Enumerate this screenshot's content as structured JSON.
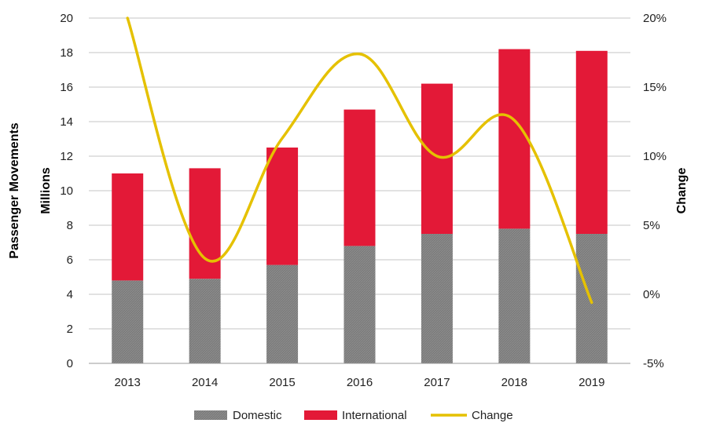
{
  "chart_data": {
    "type": "bar",
    "stacked": true,
    "categories": [
      "2013",
      "2014",
      "2015",
      "2016",
      "2017",
      "2018",
      "2019"
    ],
    "series": [
      {
        "name": "Domestic",
        "axis": "left",
        "values": [
          4.8,
          4.9,
          5.7,
          6.8,
          7.5,
          7.8,
          7.5
        ],
        "color": "#808080",
        "pattern": "hatched"
      },
      {
        "name": "International",
        "axis": "left",
        "values": [
          6.2,
          6.4,
          6.8,
          7.9,
          8.7,
          10.4,
          10.6
        ],
        "color": "#e31937"
      },
      {
        "name": "Change",
        "axis": "right",
        "type": "line",
        "values": [
          20,
          2.6,
          11.3,
          17.4,
          10,
          12.6,
          -0.6
        ],
        "color": "#e5c100"
      }
    ],
    "ylabel_left_line1": "Passenger Movements",
    "ylabel_left_line2": "Millions",
    "ylabel_right": "Change",
    "ylim_left": [
      0,
      20
    ],
    "yticks_left": [
      "0",
      "2",
      "4",
      "6",
      "8",
      "10",
      "12",
      "14",
      "16",
      "18",
      "20"
    ],
    "ylim_right": [
      -5,
      20
    ],
    "yticks_right": [
      "-5%",
      "0%",
      "5%",
      "10%",
      "15%",
      "20%"
    ],
    "grid": true,
    "legend_position": "bottom"
  }
}
